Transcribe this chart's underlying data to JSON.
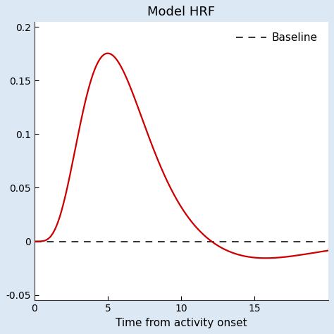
{
  "title": "Model HRF",
  "xlabel": "Time from activity onset",
  "xlim": [
    0,
    20
  ],
  "ylim": [
    -0.055,
    0.205
  ],
  "yticks": [
    -0.05,
    0,
    0.05,
    0.1,
    0.15,
    0.2
  ],
  "yticklabels": [
    "-0.05",
    "0",
    "0.05",
    "0.1",
    "0.15",
    "0.2"
  ],
  "xticks": [
    0,
    5,
    10,
    15
  ],
  "hrf_color": "#cc0000",
  "baseline_color": "#333333",
  "baseline_label": "Baseline",
  "figure_background": "#dde8f5",
  "axes_background": "#ffffff",
  "hrf_linewidth": 1.6,
  "baseline_linewidth": 1.4,
  "title_fontsize": 13,
  "label_fontsize": 11,
  "tick_fontsize": 10,
  "legend_fontsize": 11,
  "hrf_a1": 6,
  "hrf_b1": 1.0,
  "hrf_a2": 16,
  "hrf_b2": 1.0,
  "hrf_ratio": 0.1667
}
